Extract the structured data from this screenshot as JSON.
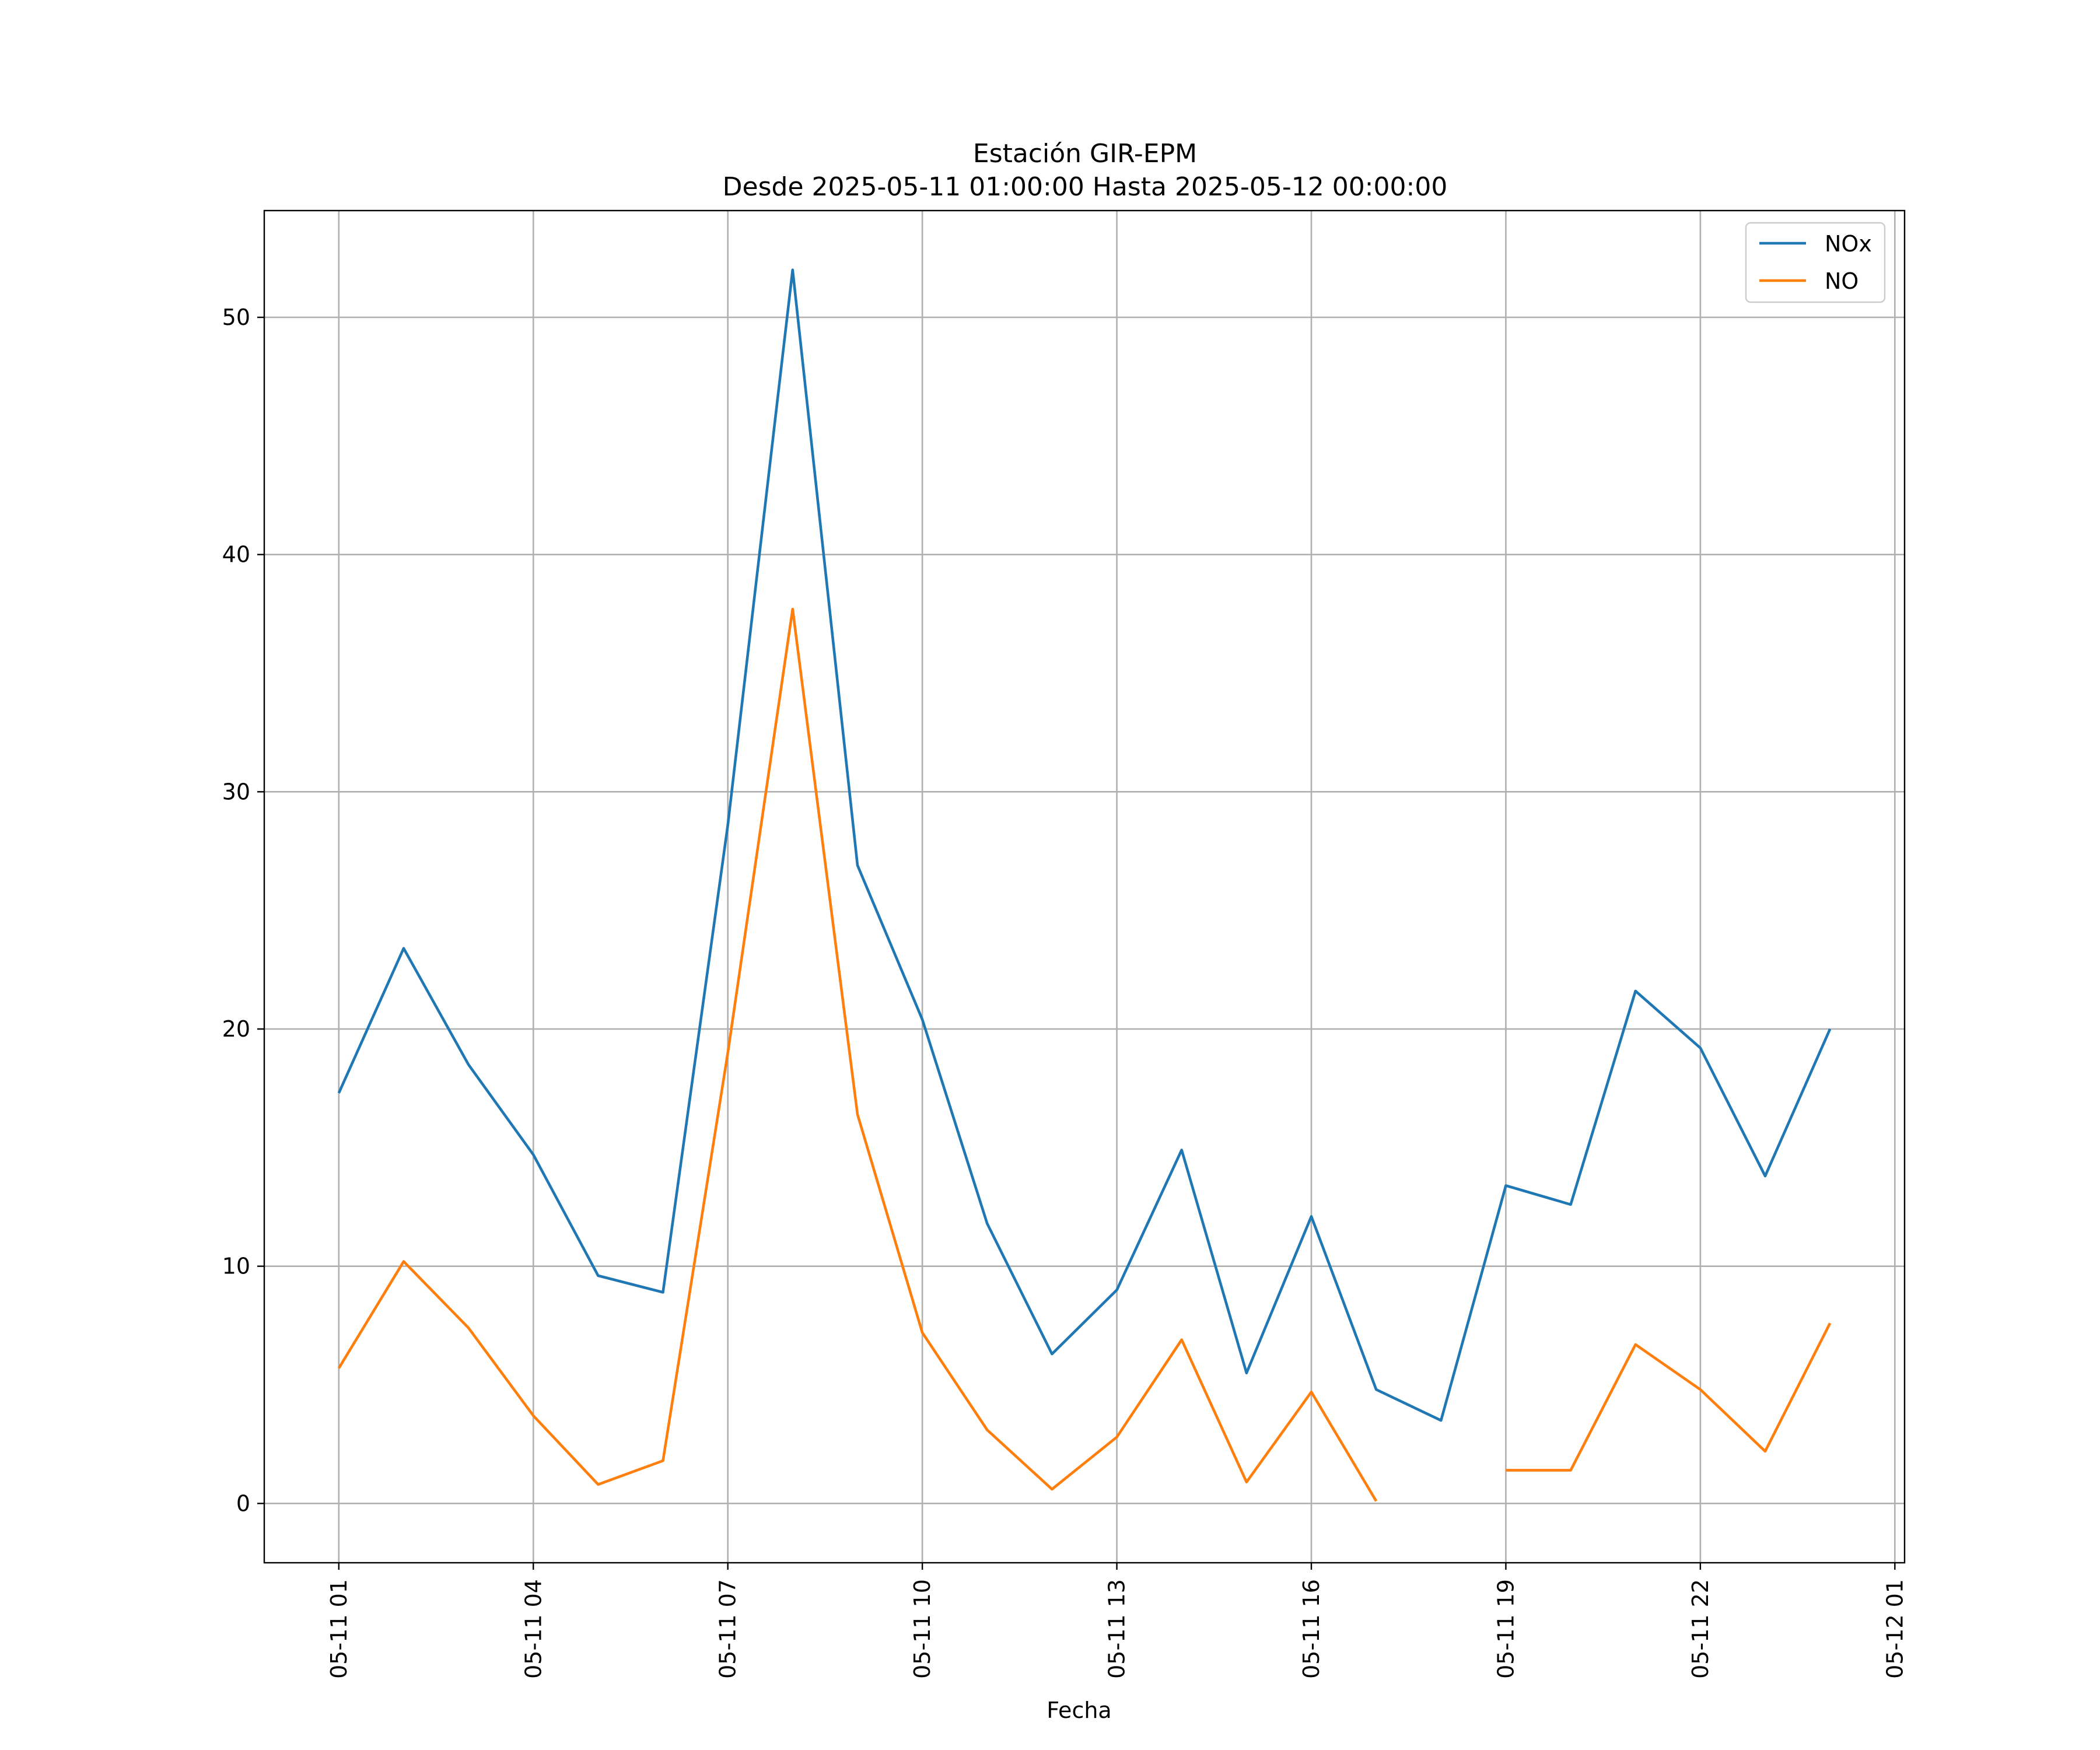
{
  "chart_data": {
    "type": "line",
    "title": "Estación GIR-EPM",
    "subtitle": "Desde 2025-05-11 01:00:00 Hasta 2025-05-12 00:00:00",
    "xlabel": "Fecha",
    "ylabel": "",
    "x": [
      "2025-05-11 01:00",
      "2025-05-11 02:00",
      "2025-05-11 03:00",
      "2025-05-11 04:00",
      "2025-05-11 05:00",
      "2025-05-11 06:00",
      "2025-05-11 07:00",
      "2025-05-11 08:00",
      "2025-05-11 09:00",
      "2025-05-11 10:00",
      "2025-05-11 11:00",
      "2025-05-11 12:00",
      "2025-05-11 13:00",
      "2025-05-11 14:00",
      "2025-05-11 15:00",
      "2025-05-11 16:00",
      "2025-05-11 17:00",
      "2025-05-11 18:00",
      "2025-05-11 19:00",
      "2025-05-11 20:00",
      "2025-05-11 21:00",
      "2025-05-11 22:00",
      "2025-05-11 23:00",
      "2025-05-12 00:00"
    ],
    "x_ticks": [
      {
        "x": "2025-05-11 01:00",
        "label": "05-11 01"
      },
      {
        "x": "2025-05-11 04:00",
        "label": "05-11 04"
      },
      {
        "x": "2025-05-11 07:00",
        "label": "05-11 07"
      },
      {
        "x": "2025-05-11 10:00",
        "label": "05-11 10"
      },
      {
        "x": "2025-05-11 13:00",
        "label": "05-11 13"
      },
      {
        "x": "2025-05-11 16:00",
        "label": "05-11 16"
      },
      {
        "x": "2025-05-11 19:00",
        "label": "05-11 19"
      },
      {
        "x": "2025-05-11 22:00",
        "label": "05-11 22"
      },
      {
        "x": "2025-05-12 01:00",
        "label": "05-12 01"
      }
    ],
    "xlim": [
      "2025-05-10 23:51",
      "2025-05-12 01:09"
    ],
    "y_ticks": [
      0,
      10,
      20,
      30,
      40,
      50
    ],
    "ylim": [
      -2.5,
      54.5
    ],
    "grid": true,
    "legend": "top-right",
    "series": [
      {
        "name": "NOx",
        "color": "#1f77b4",
        "values": [
          17.3,
          23.4,
          18.5,
          14.7,
          9.6,
          8.9,
          28.6,
          52.0,
          26.9,
          20.4,
          11.8,
          6.3,
          9.0,
          14.9,
          5.5,
          12.1,
          4.8,
          3.5,
          13.4,
          12.6,
          21.6,
          19.2,
          13.8,
          20.0
        ]
      },
      {
        "name": "NO",
        "color": "#ff7f0e",
        "values": [
          5.7,
          10.2,
          7.4,
          3.7,
          0.8,
          1.8,
          19.0,
          37.7,
          16.4,
          7.2,
          3.1,
          0.6,
          2.8,
          6.9,
          0.9,
          4.7,
          0.1,
          null,
          1.4,
          1.4,
          6.7,
          4.8,
          2.2,
          7.6
        ]
      }
    ]
  }
}
